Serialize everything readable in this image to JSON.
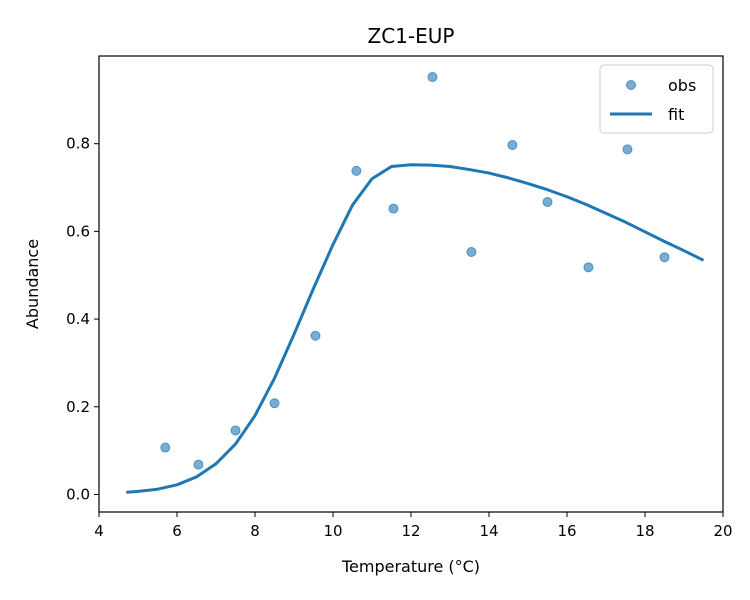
{
  "chart_data": {
    "type": "scatter",
    "title": "ZC1-EUP",
    "xlabel": "Temperature (°C)",
    "ylabel": "Abundance",
    "xlim": [
      4,
      20
    ],
    "ylim": [
      -0.04,
      1.0
    ],
    "x_ticks": [
      4,
      6,
      8,
      10,
      12,
      14,
      16,
      18,
      20
    ],
    "y_ticks": [
      0.0,
      0.2,
      0.4,
      0.6,
      0.8
    ],
    "grid": false,
    "legend_position": "top-right",
    "colors": {
      "series": "#1f77b4"
    },
    "series": [
      {
        "name": "obs",
        "kind": "scatter",
        "points": [
          [
            5.7,
            0.107
          ],
          [
            6.55,
            0.068
          ],
          [
            7.5,
            0.146
          ],
          [
            8.5,
            0.208
          ],
          [
            9.55,
            0.362
          ],
          [
            10.6,
            0.738
          ],
          [
            11.55,
            0.652
          ],
          [
            12.55,
            0.952
          ],
          [
            13.55,
            0.553
          ],
          [
            14.6,
            0.797
          ],
          [
            15.5,
            0.667
          ],
          [
            16.55,
            0.518
          ],
          [
            17.55,
            0.787
          ],
          [
            18.5,
            0.541
          ]
        ]
      },
      {
        "name": "fit",
        "kind": "line",
        "points": [
          [
            4.7,
            0.005
          ],
          [
            5.0,
            0.007
          ],
          [
            5.5,
            0.012
          ],
          [
            6.0,
            0.022
          ],
          [
            6.5,
            0.04
          ],
          [
            7.0,
            0.07
          ],
          [
            7.5,
            0.115
          ],
          [
            8.0,
            0.18
          ],
          [
            8.5,
            0.265
          ],
          [
            9.0,
            0.365
          ],
          [
            9.5,
            0.47
          ],
          [
            10.0,
            0.57
          ],
          [
            10.5,
            0.66
          ],
          [
            11.0,
            0.72
          ],
          [
            11.5,
            0.748
          ],
          [
            12.0,
            0.752
          ],
          [
            12.5,
            0.751
          ],
          [
            13.0,
            0.748
          ],
          [
            13.5,
            0.741
          ],
          [
            14.0,
            0.733
          ],
          [
            14.5,
            0.722
          ],
          [
            15.0,
            0.709
          ],
          [
            15.5,
            0.695
          ],
          [
            16.0,
            0.679
          ],
          [
            16.5,
            0.661
          ],
          [
            17.0,
            0.641
          ],
          [
            17.5,
            0.621
          ],
          [
            18.0,
            0.599
          ],
          [
            18.5,
            0.577
          ],
          [
            19.0,
            0.556
          ],
          [
            19.5,
            0.534
          ]
        ]
      }
    ]
  }
}
